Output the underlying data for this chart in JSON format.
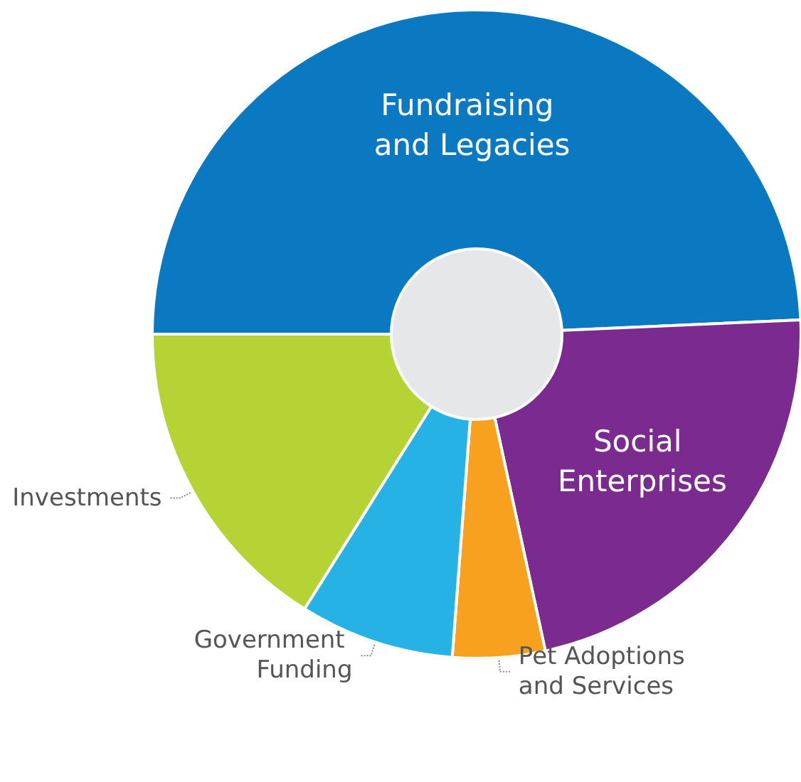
{
  "chart_data": {
    "type": "donut",
    "categories": [
      "Fundraising and Legacies",
      "Social Enterprises",
      "Pet Adoptions and Services",
      "Government Funding",
      "Investments"
    ],
    "values": [
      49.3,
      22.3,
      4.6,
      7.7,
      16.1
    ],
    "colors": [
      "#0a79c2",
      "#7b2a8f",
      "#f7a11e",
      "#27b2e6",
      "#b5d334"
    ],
    "legend": false
  }
}
